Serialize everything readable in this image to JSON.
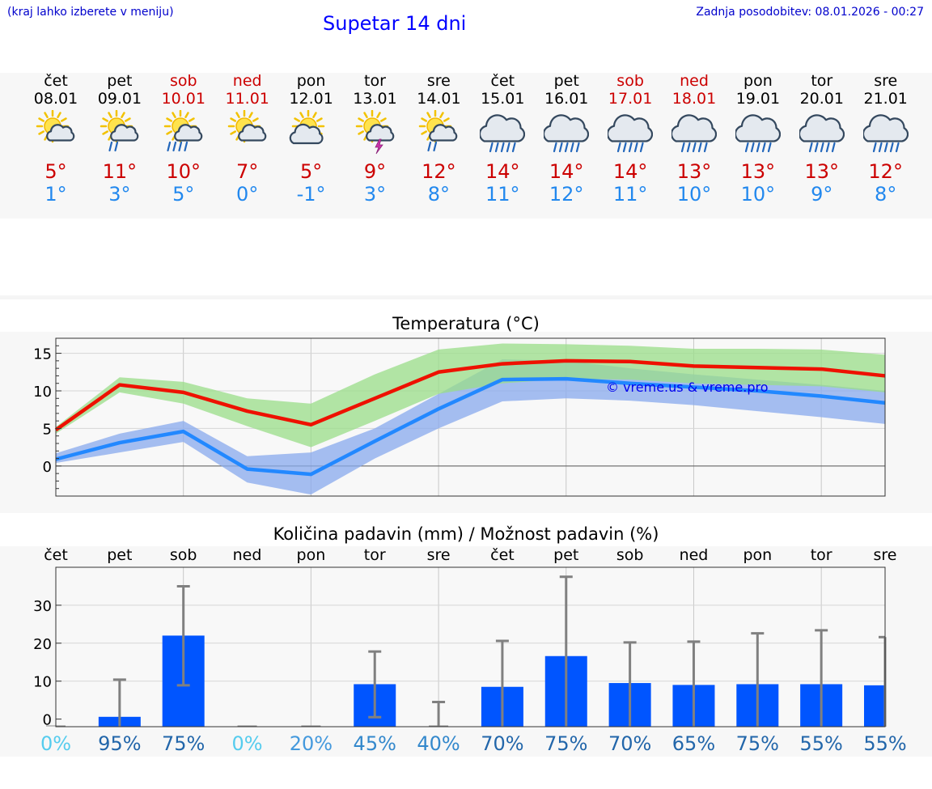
{
  "header": {
    "hint": "(kraj lahko izberete v meniju)",
    "title": "Supetar 14 dni",
    "updated": "Zadnja posodobitev: 08.01.2026 - 00:27"
  },
  "days": [
    {
      "name": "čet",
      "date": "08.01",
      "weekend": false,
      "icon": "sun-cloud-icon",
      "tmax": "5°",
      "tmin": "1°"
    },
    {
      "name": "pet",
      "date": "09.01",
      "weekend": false,
      "icon": "sun-cloud-rain-icon",
      "tmax": "11°",
      "tmin": "3°"
    },
    {
      "name": "sob",
      "date": "10.01",
      "weekend": true,
      "icon": "sun-cloud-heavy-rain-icon",
      "tmax": "10°",
      "tmin": "5°"
    },
    {
      "name": "ned",
      "date": "11.01",
      "weekend": true,
      "icon": "sun-cloud-icon",
      "tmax": "7°",
      "tmin": "0°"
    },
    {
      "name": "pon",
      "date": "12.01",
      "weekend": false,
      "icon": "sun-big-cloud-icon",
      "tmax": "5°",
      "tmin": "-1°"
    },
    {
      "name": "tor",
      "date": "13.01",
      "weekend": false,
      "icon": "sun-cloud-thunder-icon",
      "tmax": "9°",
      "tmin": "3°"
    },
    {
      "name": "sre",
      "date": "14.01",
      "weekend": false,
      "icon": "sun-cloud-rain-icon",
      "tmax": "12°",
      "tmin": "8°"
    },
    {
      "name": "čet",
      "date": "15.01",
      "weekend": false,
      "icon": "cloud-rain-icon",
      "tmax": "14°",
      "tmin": "11°"
    },
    {
      "name": "pet",
      "date": "16.01",
      "weekend": false,
      "icon": "cloud-rain-icon",
      "tmax": "14°",
      "tmin": "12°"
    },
    {
      "name": "sob",
      "date": "17.01",
      "weekend": true,
      "icon": "cloud-rain-icon",
      "tmax": "14°",
      "tmin": "11°"
    },
    {
      "name": "ned",
      "date": "18.01",
      "weekend": true,
      "icon": "cloud-rain-icon",
      "tmax": "13°",
      "tmin": "10°"
    },
    {
      "name": "pon",
      "date": "19.01",
      "weekend": false,
      "icon": "cloud-rain-icon",
      "tmax": "13°",
      "tmin": "10°"
    },
    {
      "name": "tor",
      "date": "20.01",
      "weekend": false,
      "icon": "cloud-rain-icon",
      "tmax": "13°",
      "tmin": "9°"
    },
    {
      "name": "sre",
      "date": "21.01",
      "weekend": false,
      "icon": "cloud-rain-icon",
      "tmax": "12°",
      "tmin": "8°"
    }
  ],
  "colors": {
    "max_line": "#ee1100",
    "min_line": "#2288ff",
    "max_band": "#99dd88",
    "min_band": "#88aaee",
    "precip_bar": "#0055ff",
    "error_bar": "#808080",
    "title_blue": "#0000ff"
  },
  "chart_data": [
    {
      "type": "line",
      "title": "Temperatura (°C)",
      "watermark": "© vreme.us & vreme.pro",
      "x": [
        0,
        1,
        2,
        3,
        4,
        5,
        6,
        7,
        8,
        9,
        10,
        11,
        12,
        13
      ],
      "ylim": [
        -4,
        17
      ],
      "yticks": [
        0,
        5,
        10,
        15
      ],
      "series": [
        {
          "name": "max",
          "values": [
            4.8,
            10.8,
            9.8,
            7.3,
            5.5,
            9.0,
            12.5,
            13.6,
            14.0,
            13.9,
            13.3,
            13.1,
            12.9,
            12.0
          ]
        },
        {
          "name": "min",
          "values": [
            0.9,
            3.1,
            4.6,
            -0.4,
            -1.1,
            3.3,
            7.6,
            11.5,
            11.6,
            11.0,
            10.5,
            10.0,
            9.3,
            8.4
          ]
        }
      ],
      "bands": [
        {
          "name": "max-range",
          "upper": [
            5.2,
            11.8,
            11.2,
            9.0,
            8.3,
            12.2,
            15.5,
            16.3,
            16.2,
            16.0,
            15.6,
            15.6,
            15.5,
            14.8
          ],
          "lower": [
            4.3,
            9.8,
            8.3,
            5.3,
            2.5,
            6.0,
            9.6,
            11.0,
            11.6,
            11.5,
            11.0,
            10.8,
            10.6,
            9.8
          ]
        },
        {
          "name": "min-range",
          "upper": [
            1.7,
            4.3,
            6.0,
            1.3,
            1.8,
            5.0,
            9.6,
            14.2,
            14.0,
            13.0,
            12.2,
            11.5,
            10.8,
            10.0
          ]
        },
        {
          "name": "min-range-lower",
          "lower": [
            0.4,
            1.8,
            3.2,
            -2.2,
            -3.8,
            1.0,
            5.0,
            8.6,
            9.0,
            8.7,
            8.1,
            7.3,
            6.5,
            5.6
          ]
        }
      ]
    },
    {
      "type": "bar",
      "title": "Količina padavin (mm) / Možnost padavin (%)",
      "categories": [
        "čet",
        "pet",
        "sob",
        "ned",
        "pon",
        "tor",
        "sre",
        "čet",
        "pet",
        "sob",
        "ned",
        "pon",
        "tor",
        "sre"
      ],
      "values": [
        0,
        0.6,
        22.0,
        0,
        0,
        9.2,
        0,
        8.5,
        16.6,
        9.5,
        9.0,
        9.2,
        9.2,
        8.9
      ],
      "err_low": [
        0,
        0,
        8.9,
        0,
        0,
        0.5,
        0,
        0,
        0,
        0,
        0,
        0,
        0,
        0
      ],
      "err_high": [
        0,
        10.4,
        35.0,
        0,
        0,
        17.8,
        4.5,
        20.6,
        37.5,
        20.2,
        20.4,
        22.6,
        23.4,
        21.6
      ],
      "probability": [
        "0%",
        "95%",
        "75%",
        "0%",
        "20%",
        "45%",
        "40%",
        "70%",
        "75%",
        "70%",
        "65%",
        "75%",
        "55%",
        "55%"
      ],
      "prob_colors": [
        "#55ccee",
        "#2266aa",
        "#2266aa",
        "#55ccee",
        "#4499dd",
        "#3388cc",
        "#3388cc",
        "#2266aa",
        "#2266aa",
        "#2266aa",
        "#2266aa",
        "#2266aa",
        "#2266aa",
        "#2266aa"
      ],
      "ylim": [
        -2,
        40
      ],
      "yticks": [
        0,
        10,
        20,
        30
      ]
    }
  ]
}
